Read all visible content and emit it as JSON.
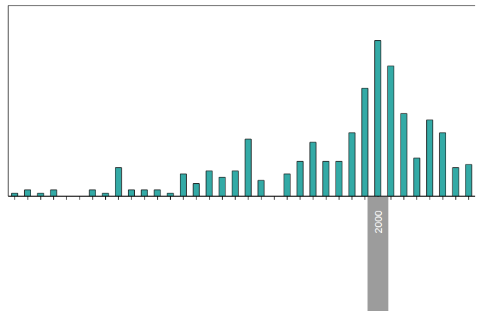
{
  "chart_data": {
    "type": "bar",
    "categories": [
      null,
      null,
      null,
      null,
      null,
      null,
      null,
      null,
      null,
      null,
      null,
      null,
      null,
      null,
      null,
      null,
      null,
      null,
      null,
      null,
      null,
      null,
      null,
      null,
      null,
      null,
      null,
      null,
      "2000",
      null,
      null,
      null,
      null,
      null,
      null,
      null
    ],
    "values": [
      1,
      2,
      1,
      2,
      0,
      0,
      2,
      1,
      9,
      2,
      2,
      2,
      1,
      7,
      4,
      8,
      6,
      8,
      18,
      5,
      0,
      7,
      11,
      17,
      11,
      11,
      20,
      34,
      49,
      41,
      26,
      12,
      24,
      20,
      9,
      10
    ],
    "color": "#33aaa6",
    "ylim": [
      0,
      60
    ],
    "yticks": [
      0,
      10,
      20,
      30,
      40,
      50,
      60
    ],
    "grid": true,
    "tick_labels": "x"
  }
}
